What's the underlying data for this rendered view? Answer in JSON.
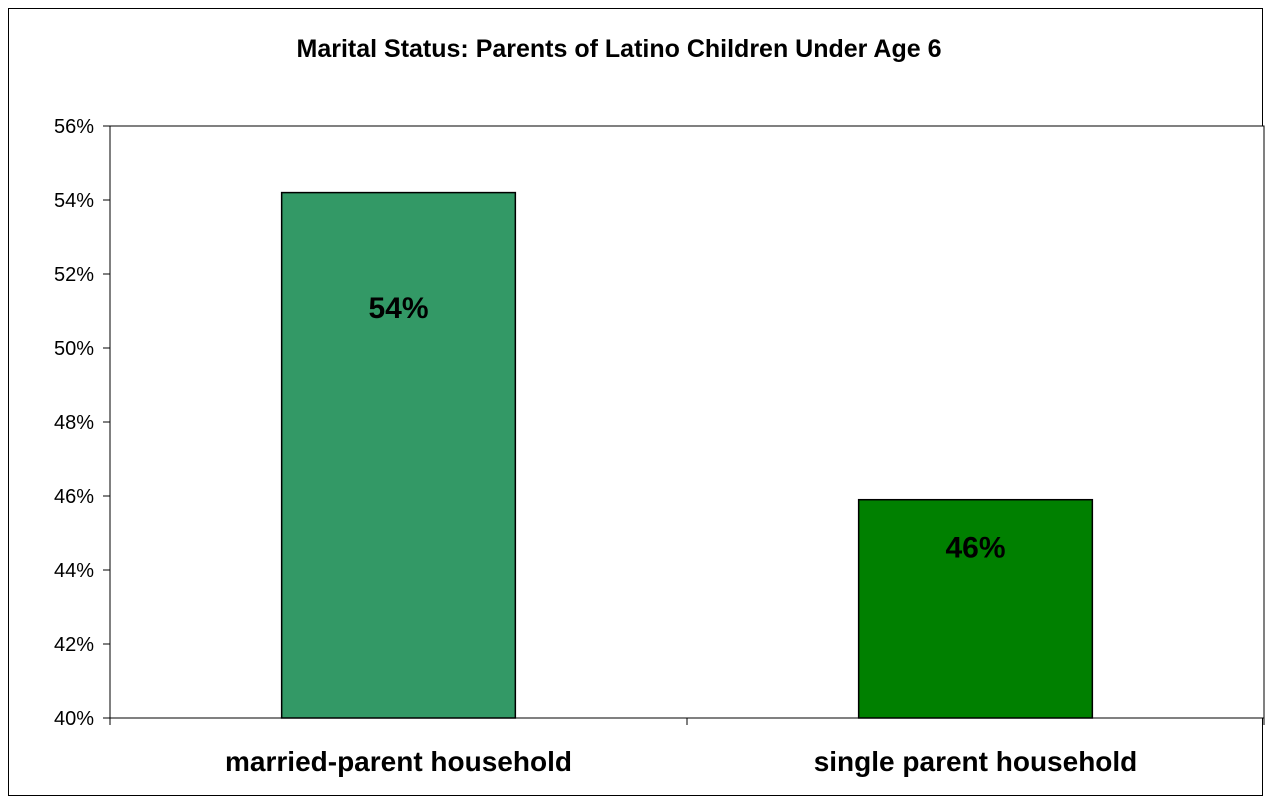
{
  "chart_data": {
    "type": "bar",
    "title": "Marital Status: Parents of Latino Children Under Age 6",
    "categories": [
      "married-parent household",
      "single parent household"
    ],
    "values": [
      54.2,
      45.9
    ],
    "data_labels": [
      "54%",
      "46%"
    ],
    "bar_colors": [
      "#339966",
      "#008000"
    ],
    "ylim": [
      40,
      56
    ],
    "yticks": [
      40,
      42,
      44,
      46,
      48,
      50,
      52,
      54,
      56
    ],
    "ytick_labels": [
      "40%",
      "42%",
      "44%",
      "46%",
      "48%",
      "50%",
      "52%",
      "54%",
      "56%"
    ],
    "xlabel": "",
    "ylabel": "",
    "grid": false,
    "legend": "none"
  }
}
